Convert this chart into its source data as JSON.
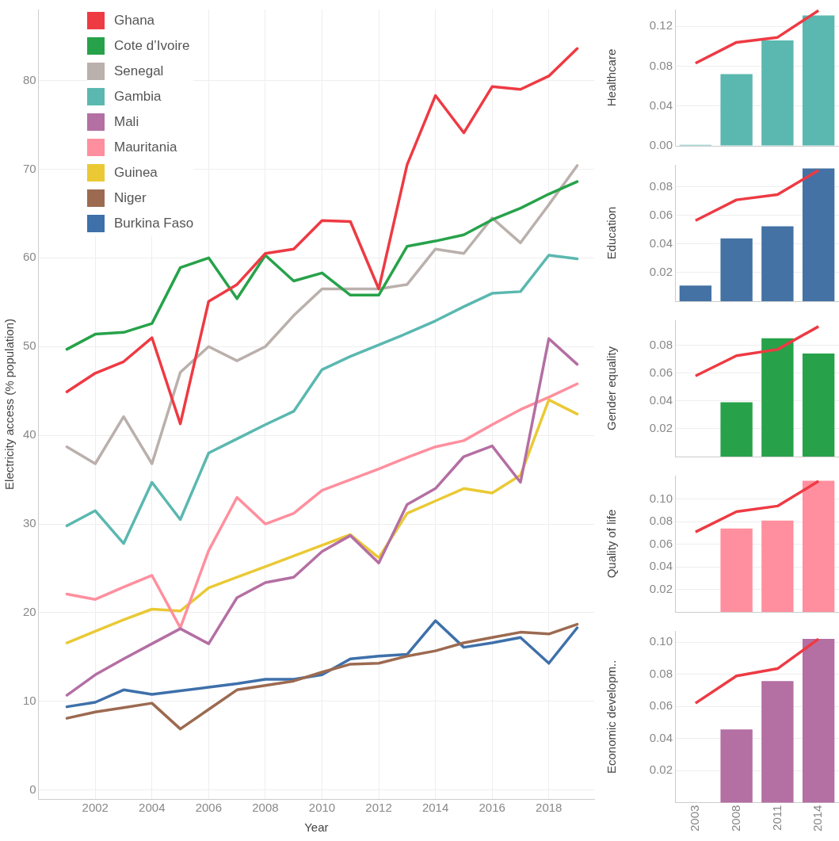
{
  "chart_data": [
    {
      "type": "line",
      "xlabel": "Year",
      "ylabel": "Electricity access (% population)",
      "x": [
        2001,
        2002,
        2003,
        2004,
        2005,
        2006,
        2007,
        2008,
        2009,
        2010,
        2011,
        2012,
        2013,
        2014,
        2015,
        2016,
        2017,
        2018,
        2019
      ],
      "xlim": [
        2000,
        2019.6
      ],
      "xticks": [
        2002,
        2004,
        2006,
        2008,
        2010,
        2012,
        2014,
        2016,
        2018
      ],
      "ylim": [
        -1,
        88
      ],
      "yticks": [
        0,
        10,
        20,
        30,
        40,
        50,
        60,
        70,
        80
      ],
      "grid": true,
      "legend": "top left",
      "series": [
        {
          "name": "Ghana",
          "color": "#ee3a43",
          "values": [
            44.9,
            47,
            48.3,
            51,
            41.3,
            55.1,
            57,
            60.5,
            61,
            64.2,
            64.1,
            56.5,
            70.5,
            78.3,
            74.1,
            79.3,
            79,
            80.5,
            83.6
          ]
        },
        {
          "name": "Cote d’Ivoire",
          "color": "#27a24a",
          "values": [
            49.7,
            51.4,
            51.6,
            52.6,
            58.9,
            60,
            55.4,
            60.3,
            57.4,
            58.3,
            55.8,
            55.8,
            61.3,
            61.9,
            62.6,
            64.3,
            65.6,
            67.2,
            68.6
          ]
        },
        {
          "name": "Senegal",
          "color": "#bab0ac",
          "values": [
            38.7,
            36.8,
            42.1,
            36.8,
            47.1,
            50,
            48.4,
            50,
            53.5,
            56.5,
            56.5,
            56.5,
            57,
            61,
            60.5,
            64.5,
            61.7,
            66,
            70.4
          ]
        },
        {
          "name": "Gambia",
          "color": "#5ab8b0",
          "values": [
            29.8,
            31.5,
            27.8,
            34.7,
            30.5,
            38,
            39.6,
            41.2,
            42.7,
            47.4,
            48.9,
            50.2,
            51.5,
            52.9,
            54.5,
            56,
            56.2,
            60.3,
            59.9
          ]
        },
        {
          "name": "Mali",
          "color": "#b46fa3",
          "values": [
            10.7,
            13,
            14.8,
            16.5,
            18.2,
            16.5,
            21.7,
            23.4,
            24,
            26.9,
            28.7,
            25.6,
            32.2,
            34,
            37.6,
            38.8,
            34.7,
            50.9,
            48
          ]
        },
        {
          "name": "Mauritania",
          "color": "#ff8f9e",
          "values": [
            22.1,
            21.5,
            22.9,
            24.2,
            18.3,
            27,
            33,
            30,
            31.2,
            33.8,
            35,
            36.2,
            37.5,
            38.7,
            39.4,
            41.2,
            42.9,
            44.3,
            45.8
          ]
        },
        {
          "name": "Guinea",
          "color": "#eac935",
          "values": [
            16.6,
            17.9,
            19.2,
            20.4,
            20.2,
            22.8,
            24,
            25.2,
            26.4,
            27.6,
            28.8,
            26.2,
            31.2,
            32.6,
            34,
            33.5,
            35.5,
            44,
            42.4
          ]
        },
        {
          "name": "Niger",
          "color": "#9c6a50",
          "values": [
            8.1,
            8.8,
            9.3,
            9.8,
            6.9,
            9.1,
            11.3,
            11.8,
            12.3,
            13.3,
            14.2,
            14.3,
            15.1,
            15.7,
            16.6,
            17.2,
            17.8,
            17.6,
            18.7
          ]
        },
        {
          "name": "Burkina Faso",
          "color": "#3e70aa",
          "values": [
            9.4,
            9.9,
            11.3,
            10.8,
            11.2,
            11.6,
            12,
            12.5,
            12.5,
            13,
            14.8,
            15.1,
            15.3,
            19.1,
            16.1,
            16.6,
            17.2,
            14.3,
            18.3
          ]
        }
      ]
    },
    {
      "type": "bar",
      "ylabel": "Healthcare",
      "categories": [
        "2003",
        "2008",
        "2011",
        "2014"
      ],
      "ylim": [
        0,
        0.137
      ],
      "yticks": [
        {
          "value": 0,
          "label": "0.00"
        },
        {
          "value": 0.04,
          "label": "0.04"
        },
        {
          "value": 0.08,
          "label": "0.08"
        },
        {
          "value": 0.12,
          "label": "0.12"
        }
      ],
      "grid": "y",
      "tick_labels": "y",
      "series": [
        {
          "type": "bar",
          "color": "#5bb8b0",
          "values": [
            0.001,
            0.072,
            0.106,
            0.131
          ]
        },
        {
          "type": "line",
          "color": "#ee3a43",
          "values": [
            0.083,
            0.104,
            0.109,
            0.136
          ]
        }
      ]
    },
    {
      "type": "bar",
      "ylabel": "Education",
      "categories": [
        "2003",
        "2008",
        "2011",
        "2014"
      ],
      "ylim": [
        0,
        0.0955
      ],
      "yticks": [
        0.02,
        0.04,
        0.06,
        0.08
      ],
      "grid": "y",
      "tick_labels": "y",
      "series": [
        {
          "type": "bar",
          "color": "#4472a4",
          "values": [
            0.011,
            0.044,
            0.0525,
            0.093
          ]
        },
        {
          "type": "line",
          "color": "#ee3a43",
          "values": [
            0.0565,
            0.071,
            0.0747,
            0.0917
          ]
        }
      ]
    },
    {
      "type": "bar",
      "ylabel": "Gender equality",
      "categories": [
        "2003",
        "2008",
        "2011",
        "2014"
      ],
      "ylim": [
        0,
        0.098
      ],
      "yticks": [
        0.02,
        0.04,
        0.06,
        0.08
      ],
      "grid": "y",
      "tick_labels": "y",
      "series": [
        {
          "type": "bar",
          "color": "#27a24a",
          "values": [
            null,
            0.039,
            0.085,
            0.074
          ]
        },
        {
          "type": "line",
          "color": "#ee3a43",
          "values": [
            0.058,
            0.0725,
            0.077,
            0.0935
          ]
        }
      ]
    },
    {
      "type": "bar",
      "ylabel": "Quality of life",
      "categories": [
        "2003",
        "2008",
        "2011",
        "2014"
      ],
      "ylim": [
        0,
        0.121
      ],
      "yticks": [
        0.02,
        0.04,
        0.06,
        0.08,
        {
          "value": 0.1,
          "label": "0.10"
        }
      ],
      "grid": "y",
      "tick_labels": "y",
      "series": [
        {
          "type": "bar",
          "color": "#ff8f9e",
          "values": [
            null,
            0.074,
            0.081,
            0.1165
          ]
        },
        {
          "type": "line",
          "color": "#ee3a43",
          "values": [
            0.071,
            0.089,
            0.094,
            0.116
          ]
        }
      ]
    },
    {
      "type": "bar",
      "ylabel": "Economic developm..",
      "categories": [
        "2003",
        "2008",
        "2011",
        "2014"
      ],
      "ylim": [
        0,
        0.107
      ],
      "yticks": [
        0.02,
        0.04,
        0.06,
        0.08,
        {
          "value": 0.1,
          "label": "0.10"
        }
      ],
      "grid": "y",
      "series": [
        {
          "type": "bar",
          "color": "#b46fa3",
          "values": [
            null,
            0.0456,
            0.0758,
            0.102
          ]
        },
        {
          "type": "line",
          "color": "#ee3a43",
          "values": [
            0.062,
            0.079,
            0.0835,
            0.102
          ]
        }
      ]
    }
  ]
}
